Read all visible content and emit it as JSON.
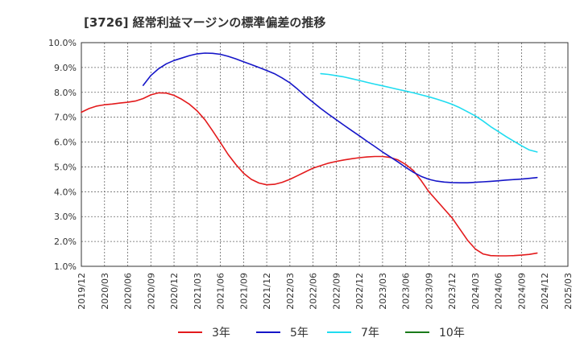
{
  "chart_data": {
    "type": "line",
    "title": "[3726]  経常利益マージンの標準偏差の推移",
    "xlabel": "",
    "ylabel": "",
    "x_ticks": [
      "2019/12",
      "2020/03",
      "2020/06",
      "2020/09",
      "2020/12",
      "2021/03",
      "2021/06",
      "2021/09",
      "2021/12",
      "2022/03",
      "2022/06",
      "2022/09",
      "2022/12",
      "2023/03",
      "2023/06",
      "2023/09",
      "2023/12",
      "2024/03",
      "2024/06",
      "2024/09",
      "2024/12",
      "2025/03"
    ],
    "y_ticks": [
      "1.0%",
      "2.0%",
      "3.0%",
      "4.0%",
      "5.0%",
      "6.0%",
      "7.0%",
      "8.0%",
      "9.0%",
      "10.0%"
    ],
    "ylim": [
      1.0,
      10.0
    ],
    "grid": true,
    "legend_position": "bottom",
    "series": [
      {
        "name": "3年",
        "color": "#e31a1c",
        "points": [
          [
            "2019/12",
            7.2
          ],
          [
            "2020/01",
            7.35
          ],
          [
            "2020/02",
            7.45
          ],
          [
            "2020/03",
            7.5
          ],
          [
            "2020/04",
            7.53
          ],
          [
            "2020/05",
            7.57
          ],
          [
            "2020/06",
            7.6
          ],
          [
            "2020/07",
            7.65
          ],
          [
            "2020/08",
            7.75
          ],
          [
            "2020/09",
            7.9
          ],
          [
            "2020/10",
            7.98
          ],
          [
            "2020/11",
            7.97
          ],
          [
            "2020/12",
            7.88
          ],
          [
            "2021/01",
            7.72
          ],
          [
            "2021/02",
            7.52
          ],
          [
            "2021/03",
            7.25
          ],
          [
            "2021/04",
            6.9
          ],
          [
            "2021/05",
            6.45
          ],
          [
            "2021/06",
            5.98
          ],
          [
            "2021/07",
            5.5
          ],
          [
            "2021/08",
            5.1
          ],
          [
            "2021/09",
            4.75
          ],
          [
            "2021/10",
            4.5
          ],
          [
            "2021/11",
            4.35
          ],
          [
            "2021/12",
            4.28
          ],
          [
            "2022/01",
            4.3
          ],
          [
            "2022/02",
            4.38
          ],
          [
            "2022/03",
            4.5
          ],
          [
            "2022/04",
            4.65
          ],
          [
            "2022/05",
            4.8
          ],
          [
            "2022/06",
            4.95
          ],
          [
            "2022/07",
            5.05
          ],
          [
            "2022/08",
            5.15
          ],
          [
            "2022/09",
            5.22
          ],
          [
            "2022/10",
            5.28
          ],
          [
            "2022/11",
            5.33
          ],
          [
            "2022/12",
            5.37
          ],
          [
            "2023/01",
            5.4
          ],
          [
            "2023/02",
            5.42
          ],
          [
            "2023/03",
            5.42
          ],
          [
            "2023/04",
            5.38
          ],
          [
            "2023/05",
            5.28
          ],
          [
            "2023/06",
            5.1
          ],
          [
            "2023/07",
            4.85
          ],
          [
            "2023/08",
            4.45
          ],
          [
            "2023/09",
            4.0
          ],
          [
            "2023/10",
            3.65
          ],
          [
            "2023/11",
            3.3
          ],
          [
            "2023/12",
            2.95
          ],
          [
            "2024/01",
            2.5
          ],
          [
            "2024/02",
            2.05
          ],
          [
            "2024/03",
            1.7
          ],
          [
            "2024/04",
            1.5
          ],
          [
            "2024/05",
            1.43
          ],
          [
            "2024/06",
            1.42
          ],
          [
            "2024/07",
            1.42
          ],
          [
            "2024/08",
            1.43
          ],
          [
            "2024/09",
            1.45
          ],
          [
            "2024/10",
            1.48
          ],
          [
            "2024/11",
            1.53
          ]
        ]
      },
      {
        "name": "5年",
        "color": "#1515c8",
        "points": [
          [
            "2020/08",
            8.28
          ],
          [
            "2020/09",
            8.68
          ],
          [
            "2020/10",
            8.95
          ],
          [
            "2020/11",
            9.15
          ],
          [
            "2020/12",
            9.28
          ],
          [
            "2021/01",
            9.38
          ],
          [
            "2021/02",
            9.48
          ],
          [
            "2021/03",
            9.55
          ],
          [
            "2021/04",
            9.58
          ],
          [
            "2021/05",
            9.57
          ],
          [
            "2021/06",
            9.53
          ],
          [
            "2021/07",
            9.45
          ],
          [
            "2021/08",
            9.35
          ],
          [
            "2021/09",
            9.23
          ],
          [
            "2021/10",
            9.12
          ],
          [
            "2021/11",
            9.0
          ],
          [
            "2021/12",
            8.88
          ],
          [
            "2022/01",
            8.75
          ],
          [
            "2022/02",
            8.58
          ],
          [
            "2022/03",
            8.38
          ],
          [
            "2022/04",
            8.13
          ],
          [
            "2022/05",
            7.85
          ],
          [
            "2022/06",
            7.6
          ],
          [
            "2022/07",
            7.35
          ],
          [
            "2022/08",
            7.12
          ],
          [
            "2022/09",
            6.9
          ],
          [
            "2022/10",
            6.68
          ],
          [
            "2022/11",
            6.46
          ],
          [
            "2022/12",
            6.25
          ],
          [
            "2023/01",
            6.03
          ],
          [
            "2023/02",
            5.82
          ],
          [
            "2023/03",
            5.6
          ],
          [
            "2023/04",
            5.4
          ],
          [
            "2023/05",
            5.2
          ],
          [
            "2023/06",
            4.98
          ],
          [
            "2023/07",
            4.78
          ],
          [
            "2023/08",
            4.62
          ],
          [
            "2023/09",
            4.5
          ],
          [
            "2023/10",
            4.43
          ],
          [
            "2023/11",
            4.39
          ],
          [
            "2023/12",
            4.37
          ],
          [
            "2024/01",
            4.36
          ],
          [
            "2024/02",
            4.36
          ],
          [
            "2024/03",
            4.38
          ],
          [
            "2024/04",
            4.4
          ],
          [
            "2024/05",
            4.42
          ],
          [
            "2024/06",
            4.44
          ],
          [
            "2024/07",
            4.47
          ],
          [
            "2024/08",
            4.49
          ],
          [
            "2024/09",
            4.51
          ],
          [
            "2024/10",
            4.54
          ],
          [
            "2024/11",
            4.57
          ]
        ]
      },
      {
        "name": "7年",
        "color": "#1fdcf0",
        "points": [
          [
            "2022/07",
            8.75
          ],
          [
            "2022/08",
            8.72
          ],
          [
            "2022/09",
            8.67
          ],
          [
            "2022/10",
            8.62
          ],
          [
            "2022/11",
            8.55
          ],
          [
            "2022/12",
            8.48
          ],
          [
            "2023/01",
            8.4
          ],
          [
            "2023/02",
            8.33
          ],
          [
            "2023/03",
            8.26
          ],
          [
            "2023/04",
            8.19
          ],
          [
            "2023/05",
            8.12
          ],
          [
            "2023/06",
            8.05
          ],
          [
            "2023/07",
            7.98
          ],
          [
            "2023/08",
            7.9
          ],
          [
            "2023/09",
            7.82
          ],
          [
            "2023/10",
            7.73
          ],
          [
            "2023/11",
            7.63
          ],
          [
            "2023/12",
            7.52
          ],
          [
            "2024/01",
            7.38
          ],
          [
            "2024/02",
            7.22
          ],
          [
            "2024/03",
            7.05
          ],
          [
            "2024/04",
            6.85
          ],
          [
            "2024/05",
            6.62
          ],
          [
            "2024/06",
            6.42
          ],
          [
            "2024/07",
            6.22
          ],
          [
            "2024/08",
            6.03
          ],
          [
            "2024/09",
            5.85
          ],
          [
            "2024/10",
            5.68
          ],
          [
            "2024/11",
            5.6
          ]
        ]
      },
      {
        "name": "10年",
        "color": "#1a7a1a",
        "points": []
      }
    ]
  }
}
